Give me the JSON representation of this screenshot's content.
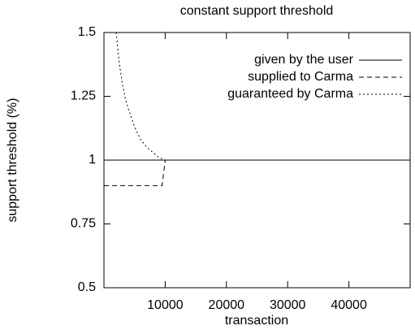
{
  "chart_data": {
    "type": "line",
    "title": "constant support threshold",
    "x_label": "transaction",
    "y_label": "support threshold (%)",
    "xlim": [
      0,
      50000
    ],
    "xticks": [
      10000,
      20000,
      30000,
      40000
    ],
    "ylim": [
      0.5,
      1.5
    ],
    "yticks": [
      0.5,
      0.75,
      1,
      1.25,
      1.5
    ],
    "legend": "top-right",
    "series": [
      {
        "name": "given by the user",
        "color": "#000000",
        "style": "solid",
        "x": [
          0,
          50000
        ],
        "values": [
          1,
          1
        ]
      },
      {
        "name": "supplied to Carma",
        "color": "#000000",
        "style": "dashed",
        "x": [
          0,
          9500,
          10000,
          50000
        ],
        "values": [
          0.9,
          0.9,
          1,
          1
        ]
      },
      {
        "name": "guaranteed by Carma",
        "color": "#000000",
        "style": "dotted",
        "x": [
          2000,
          2500,
          3000,
          3500,
          4000,
          5000,
          6000,
          7000,
          8000,
          9000,
          10000,
          50000
        ],
        "values": [
          1.5,
          1.38,
          1.3,
          1.24,
          1.2,
          1.13,
          1.08,
          1.05,
          1.03,
          1.01,
          1,
          1
        ]
      }
    ]
  }
}
